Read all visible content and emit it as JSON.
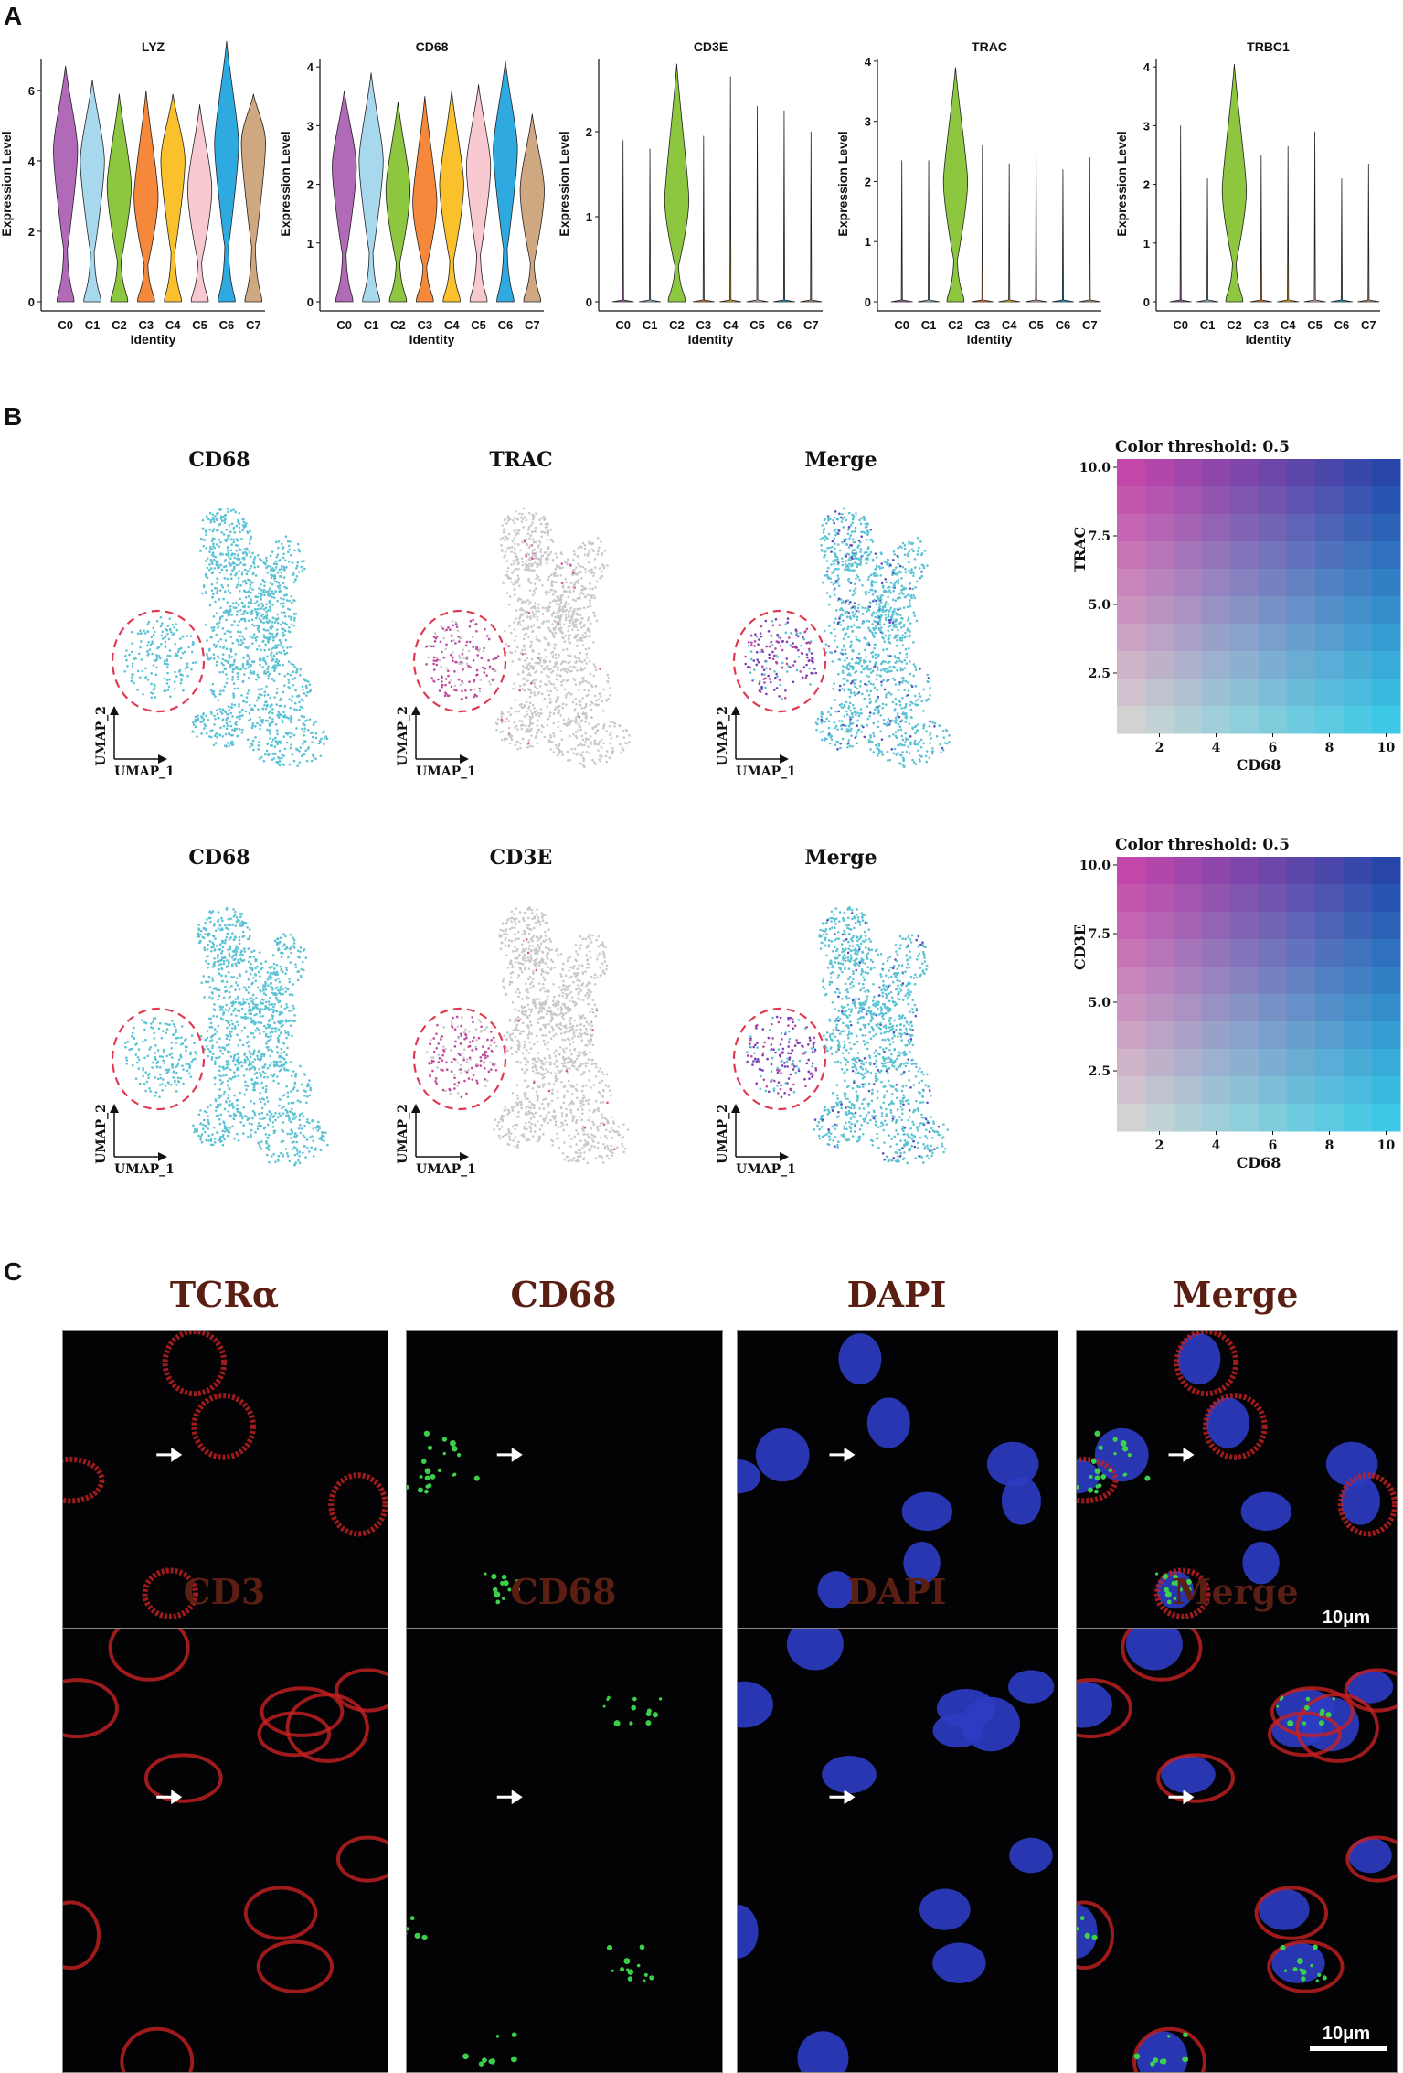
{
  "panels": {
    "a": "A",
    "b": "B",
    "c": "C"
  },
  "violin": {
    "ylabel": "Expression Level",
    "xlabel": "Identity",
    "clusters": [
      "C0",
      "C1",
      "C2",
      "C3",
      "C4",
      "C5",
      "C6",
      "C7"
    ],
    "colors": [
      "#b06ab8",
      "#a8d8ee",
      "#8dc63f",
      "#f5883a",
      "#fbc12d",
      "#f8c9d0",
      "#2eaae1",
      "#cfa882"
    ]
  },
  "chart_data": [
    {
      "type": "violin",
      "title": "LYZ",
      "xlabel": "Identity",
      "ylabel": "Expression Level",
      "categories": [
        "C0",
        "C1",
        "C2",
        "C3",
        "C4",
        "C5",
        "C6",
        "C7"
      ],
      "yticks": [
        0,
        2,
        4,
        6
      ],
      "ylim": [
        0,
        7
      ],
      "max_values": [
        6.7,
        6.3,
        5.9,
        6.0,
        5.9,
        5.6,
        7.4,
        5.9
      ],
      "median_values": [
        4.3,
        4.0,
        3.3,
        3.0,
        4.0,
        3.2,
        4.5,
        4.5
      ]
    },
    {
      "type": "violin",
      "title": "CD68",
      "xlabel": "Identity",
      "ylabel": "Expression Level",
      "categories": [
        "C0",
        "C1",
        "C2",
        "C3",
        "C4",
        "C5",
        "C6",
        "C7"
      ],
      "yticks": [
        0,
        1,
        2,
        3,
        4
      ],
      "ylim": [
        0,
        4.2
      ],
      "max_values": [
        3.6,
        3.9,
        3.4,
        3.5,
        3.6,
        3.7,
        4.1,
        3.2
      ],
      "median_values": [
        2.3,
        2.4,
        1.9,
        1.7,
        2.0,
        2.3,
        2.6,
        1.9
      ]
    },
    {
      "type": "violin",
      "title": "CD3E",
      "xlabel": "Identity",
      "ylabel": "Expression Level",
      "categories": [
        "C0",
        "C1",
        "C2",
        "C3",
        "C4",
        "C5",
        "C6",
        "C7"
      ],
      "yticks": [
        0,
        1,
        2
      ],
      "ylim": [
        0,
        2.9
      ],
      "max_values": [
        1.9,
        1.8,
        2.8,
        1.95,
        2.65,
        2.3,
        2.25,
        2.0
      ],
      "median_values": [
        0,
        0,
        1.2,
        0,
        0,
        0,
        0,
        0
      ]
    },
    {
      "type": "violin",
      "title": "TRAC",
      "xlabel": "Identity",
      "ylabel": "Expression Level",
      "categories": [
        "C0",
        "C1",
        "C2",
        "C3",
        "C4",
        "C5",
        "C6",
        "C7"
      ],
      "yticks": [
        0,
        1,
        2,
        3,
        4
      ],
      "ylim": [
        0,
        4.1
      ],
      "max_values": [
        2.35,
        2.35,
        3.9,
        2.6,
        2.3,
        2.75,
        2.2,
        2.4
      ],
      "median_values": [
        0,
        0,
        2.0,
        0,
        0,
        0,
        0,
        0
      ]
    },
    {
      "type": "violin",
      "title": "TRBC1",
      "xlabel": "Identity",
      "ylabel": "Expression Level",
      "categories": [
        "C0",
        "C1",
        "C2",
        "C3",
        "C4",
        "C5",
        "C6",
        "C7"
      ],
      "yticks": [
        0,
        1,
        2,
        3,
        4
      ],
      "ylim": [
        0,
        4.2
      ],
      "max_values": [
        3.0,
        2.1,
        4.05,
        2.5,
        2.65,
        2.9,
        2.1,
        2.35
      ],
      "median_values": [
        0,
        0,
        1.9,
        0,
        0,
        0,
        0,
        0
      ]
    }
  ],
  "umap_rows": [
    {
      "titles": [
        "CD68",
        "TRAC",
        "Merge"
      ],
      "heatmap": {
        "title": "Color threshold: 0.5",
        "ylabel": "TRAC",
        "xlabel": "CD68",
        "yticks": [
          "2.5",
          "5.0",
          "7.5",
          "10.0"
        ],
        "xticks": [
          "2",
          "4",
          "6",
          "8",
          "10"
        ]
      }
    },
    {
      "titles": [
        "CD68",
        "CD3E",
        "Merge"
      ],
      "heatmap": {
        "title": "Color threshold: 0.5",
        "ylabel": "CD3E",
        "xlabel": "CD68",
        "yticks": [
          "2.5",
          "5.0",
          "7.5",
          "10.0"
        ],
        "xticks": [
          "2",
          "4",
          "6",
          "8",
          "10"
        ]
      }
    }
  ],
  "umap_axes": {
    "x": "UMAP_1",
    "y": "UMAP_2"
  },
  "if_rows": [
    {
      "titles": [
        "TCRα",
        "CD68",
        "DAPI",
        "Merge"
      ],
      "scalebar": "10μm"
    },
    {
      "titles": [
        "CD3",
        "CD68",
        "DAPI",
        "Merge"
      ],
      "scalebar": "10μm"
    }
  ]
}
